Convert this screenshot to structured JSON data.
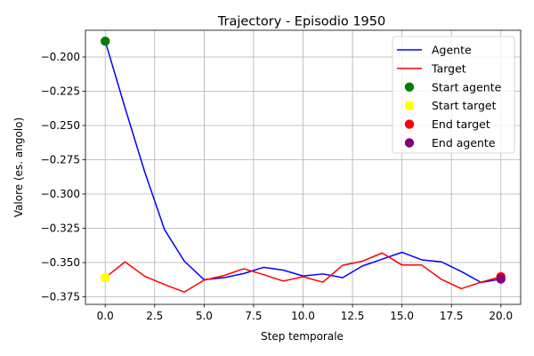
{
  "chart_data": {
    "type": "line",
    "title": "Trajectory - Episodio 1950",
    "xlabel": "Step temporale",
    "ylabel": "Valore (es. angolo)",
    "xlim": [
      -1.0,
      21.0
    ],
    "ylim": [
      -0.3805,
      -0.1805
    ],
    "xticks": [
      0.0,
      2.5,
      5.0,
      7.5,
      10.0,
      12.5,
      15.0,
      17.5,
      20.0
    ],
    "xtick_labels": [
      "0.0",
      "2.5",
      "5.0",
      "7.5",
      "10.0",
      "12.5",
      "15.0",
      "17.5",
      "20.0"
    ],
    "yticks": [
      -0.375,
      -0.35,
      -0.325,
      -0.3,
      -0.275,
      -0.25,
      -0.225,
      -0.2
    ],
    "ytick_labels": [
      "−0.375",
      "−0.350",
      "−0.325",
      "−0.300",
      "−0.275",
      "−0.250",
      "−0.225",
      "−0.200"
    ],
    "grid": true,
    "legend_position": "top-right",
    "x": [
      0,
      1,
      2,
      3,
      4,
      5,
      6,
      7,
      8,
      9,
      10,
      11,
      12,
      13,
      14,
      15,
      16,
      17,
      18,
      19,
      20
    ],
    "series": [
      {
        "name": "Agente",
        "color": "#0000ff",
        "values": [
          -0.1885,
          -0.237,
          -0.284,
          -0.326,
          -0.349,
          -0.3625,
          -0.361,
          -0.358,
          -0.3535,
          -0.3555,
          -0.3598,
          -0.3583,
          -0.361,
          -0.3525,
          -0.3475,
          -0.3425,
          -0.348,
          -0.3495,
          -0.3565,
          -0.3645,
          -0.362
        ]
      },
      {
        "name": "Target",
        "color": "#ff0000",
        "values": [
          -0.361,
          -0.3495,
          -0.36,
          -0.366,
          -0.3715,
          -0.3628,
          -0.3595,
          -0.3545,
          -0.3588,
          -0.3635,
          -0.3603,
          -0.3643,
          -0.352,
          -0.349,
          -0.343,
          -0.3518,
          -0.3518,
          -0.3623,
          -0.369,
          -0.3643,
          -0.3603
        ]
      }
    ],
    "points": [
      {
        "name": "Start agente",
        "color": "#008000",
        "x": 0,
        "y": -0.1885
      },
      {
        "name": "Start target",
        "color": "#ffff00",
        "x": 0,
        "y": -0.361
      },
      {
        "name": "End target",
        "color": "#ff0000",
        "x": 20,
        "y": -0.3603
      },
      {
        "name": "End agente",
        "color": "#800080",
        "x": 20,
        "y": -0.362
      }
    ]
  }
}
